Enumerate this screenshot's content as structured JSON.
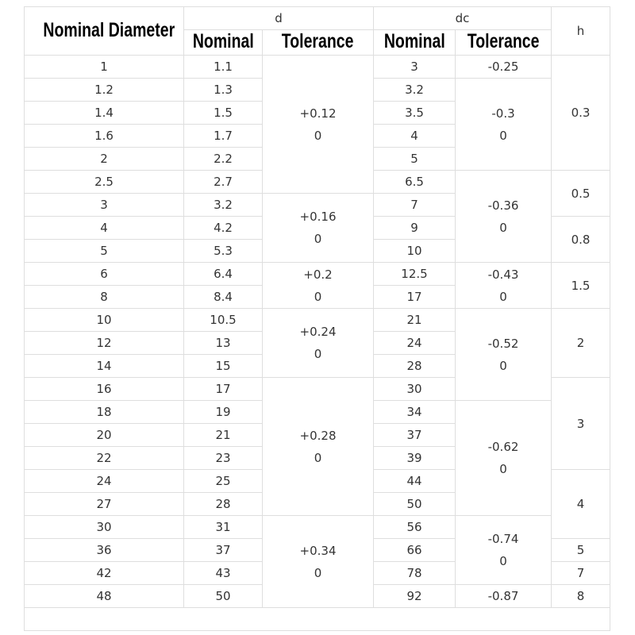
{
  "header": {
    "nominal_diameter": "Nominal Diameter",
    "d": "d",
    "dc": "dc",
    "h": "h",
    "nominal": "Nominal",
    "tolerance": "Tolerance"
  },
  "rows": [
    [
      "1",
      "1.1",
      "3"
    ],
    [
      "1.2",
      "1.3",
      "3.2"
    ],
    [
      "1.4",
      "1.5",
      "3.5"
    ],
    [
      "1.6",
      "1.7",
      "4"
    ],
    [
      "2",
      "2.2",
      "5"
    ],
    [
      "2.5",
      "2.7",
      "6.5"
    ],
    [
      "3",
      "3.2",
      "7"
    ],
    [
      "4",
      "4.2",
      "9"
    ],
    [
      "5",
      "5.3",
      "10"
    ],
    [
      "6",
      "6.4",
      "12.5"
    ],
    [
      "8",
      "8.4",
      "17"
    ],
    [
      "10",
      "10.5",
      "21"
    ],
    [
      "12",
      "13",
      "24"
    ],
    [
      "14",
      "15",
      "28"
    ],
    [
      "16",
      "17",
      "30"
    ],
    [
      "18",
      "19",
      "34"
    ],
    [
      "20",
      "21",
      "37"
    ],
    [
      "22",
      "23",
      "39"
    ],
    [
      "24",
      "25",
      "44"
    ],
    [
      "27",
      "28",
      "50"
    ],
    [
      "30",
      "31",
      "56"
    ],
    [
      "36",
      "37",
      "66"
    ],
    [
      "42",
      "43",
      "78"
    ],
    [
      "48",
      "50",
      "92"
    ]
  ],
  "d_tolerance": [
    {
      "upper": "+0.12",
      "lower": "0"
    },
    {
      "upper": "+0.16",
      "lower": "0"
    },
    {
      "upper": "+0.2",
      "lower": "0"
    },
    {
      "upper": "+0.24",
      "lower": "0"
    },
    {
      "upper": "+0.28",
      "lower": "0"
    },
    {
      "upper": "+0.34",
      "lower": "0"
    }
  ],
  "dc_tolerance": [
    {
      "upper": "-0.25"
    },
    {
      "upper": "-0.3",
      "lower": "0"
    },
    {
      "upper": "-0.36",
      "lower": "0"
    },
    {
      "upper": "-0.43",
      "lower": "0"
    },
    {
      "upper": "-0.52",
      "lower": "0"
    },
    {
      "upper": "-0.62",
      "lower": "0"
    },
    {
      "upper": "-0.74",
      "lower": "0"
    },
    {
      "upper": "-0.87"
    }
  ],
  "h": [
    "0.3",
    "0.5",
    "0.8",
    "1.5",
    "2",
    "3",
    "4",
    "5",
    "7",
    "8"
  ]
}
